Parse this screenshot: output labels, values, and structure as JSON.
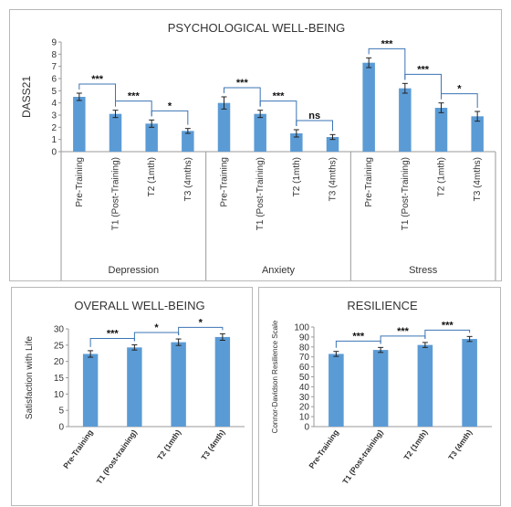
{
  "chart_data": [
    {
      "type": "bar",
      "title": "PSYCHOLOGICAL WELL-BEING",
      "ylabel": "DASS21",
      "ylim": [
        0,
        9
      ],
      "yticks": [
        "0",
        "1",
        "2",
        "3",
        "4",
        "5",
        "6",
        "7",
        "8",
        "9"
      ],
      "groups": [
        {
          "name": "Depression",
          "categories": [
            "Pre-Training",
            "T1 (Post-Training)",
            "T2 (1mth)",
            "T3 (4mths)"
          ],
          "values": [
            4.5,
            3.1,
            2.3,
            1.7
          ],
          "errors": [
            0.3,
            0.3,
            0.3,
            0.2
          ],
          "significance": [
            {
              "from": 0,
              "to": 1,
              "label": "***"
            },
            {
              "from": 1,
              "to": 2,
              "label": "***"
            },
            {
              "from": 2,
              "to": 3,
              "label": "*"
            }
          ]
        },
        {
          "name": "Anxiety",
          "categories": [
            "Pre-Training",
            "T1 (Post-Training)",
            "T2 (1mth)",
            "T3 (4mths)"
          ],
          "values": [
            4.0,
            3.1,
            1.5,
            1.2
          ],
          "errors": [
            0.5,
            0.3,
            0.3,
            0.2
          ],
          "significance": [
            {
              "from": 0,
              "to": 1,
              "label": "***"
            },
            {
              "from": 1,
              "to": 2,
              "label": "***"
            },
            {
              "from": 2,
              "to": 3,
              "label": "ns"
            }
          ]
        },
        {
          "name": "Stress",
          "categories": [
            "Pre-Training",
            "T1 (Post-Training)",
            "T2 (1mth)",
            "T3 (4mths)"
          ],
          "values": [
            7.3,
            5.2,
            3.6,
            2.9
          ],
          "errors": [
            0.4,
            0.4,
            0.4,
            0.4
          ],
          "significance": [
            {
              "from": 0,
              "to": 1,
              "label": "***"
            },
            {
              "from": 1,
              "to": 2,
              "label": "***"
            },
            {
              "from": 2,
              "to": 3,
              "label": "*"
            }
          ]
        }
      ],
      "bar_color": "#5b9bd5",
      "grid": false
    },
    {
      "type": "bar",
      "title": "OVERALL WELL-BEING",
      "ylabel": "Satisfaction with Life",
      "ylim": [
        0,
        30
      ],
      "yticks": [
        "0",
        "5",
        "10",
        "15",
        "20",
        "25",
        "30"
      ],
      "categories": [
        "Pre-Training",
        "T1 (Post-training)",
        "T2 (1mth)",
        "T3 (4mth)"
      ],
      "values": [
        22.3,
        24.3,
        25.9,
        27.5
      ],
      "errors": [
        1.0,
        0.8,
        1.0,
        1.0
      ],
      "significance": [
        {
          "from": 0,
          "to": 1,
          "label": "***"
        },
        {
          "from": 1,
          "to": 2,
          "label": "*"
        },
        {
          "from": 2,
          "to": 3,
          "label": "*"
        }
      ],
      "bar_color": "#5b9bd5",
      "grid": false
    },
    {
      "type": "bar",
      "title": "RESILIENCE",
      "ylabel": "Connor-Davidson Resilience Scale",
      "ylim": [
        0,
        100
      ],
      "yticks": [
        "0",
        "10",
        "20",
        "30",
        "40",
        "50",
        "60",
        "70",
        "80",
        "90",
        "100"
      ],
      "categories": [
        "Pre-Training",
        "T1 (Post-training)",
        "T2 (1mth)",
        "T3 (4mth)"
      ],
      "values": [
        73,
        77,
        82,
        88
      ],
      "errors": [
        2.5,
        2.5,
        2.5,
        2.5
      ],
      "significance": [
        {
          "from": 0,
          "to": 1,
          "label": "***"
        },
        {
          "from": 1,
          "to": 2,
          "label": "***"
        },
        {
          "from": 2,
          "to": 3,
          "label": "***"
        }
      ],
      "bar_color": "#5b9bd5",
      "grid": false
    }
  ]
}
